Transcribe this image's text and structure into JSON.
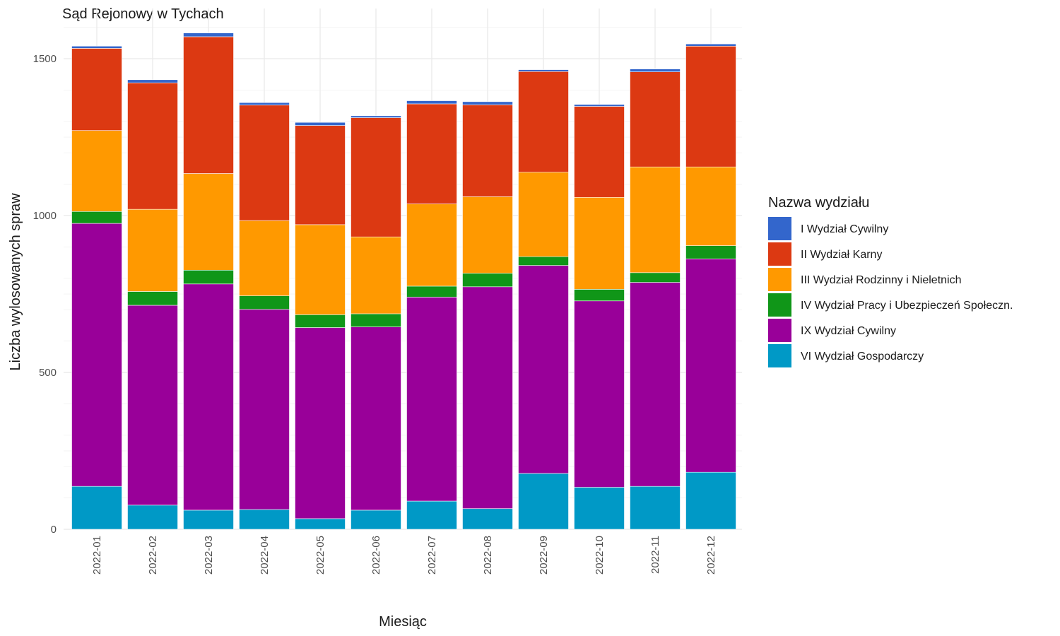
{
  "chart_data": {
    "type": "bar",
    "stacked": true,
    "title": "Sąd Rejonowy w Tychach",
    "xlabel": "Miesiąc",
    "ylabel": "Liczba wylosowanych spraw",
    "ylim": [
      0,
      1600
    ],
    "yticks": [
      0,
      500,
      1000,
      1500
    ],
    "grid": true,
    "legend_position": "right",
    "legend_title": "Nazwa wydziału",
    "categories": [
      "2022-01",
      "2022-02",
      "2022-03",
      "2022-04",
      "2022-05",
      "2022-06",
      "2022-07",
      "2022-08",
      "2022-09",
      "2022-10",
      "2022-11",
      "2022-12"
    ],
    "series": [
      {
        "name": "VI Wydział Gospodarczy",
        "color": "#0099C6",
        "values": [
          137,
          77,
          61,
          63,
          34,
          61,
          90,
          66,
          178,
          134,
          137,
          182
        ]
      },
      {
        "name": "IX Wydział Cywilny",
        "color": "#990099",
        "values": [
          838,
          637,
          721,
          638,
          609,
          584,
          650,
          707,
          663,
          594,
          650,
          680
        ]
      },
      {
        "name": "IV Wydział Pracy i Ubezpieczeń Społeczn.",
        "color": "#109618",
        "values": [
          38,
          44,
          44,
          43,
          41,
          42,
          35,
          43,
          28,
          37,
          31,
          42
        ]
      },
      {
        "name": "III Wydział Rodzinny i Nieletnich",
        "color": "#FF9900",
        "values": [
          258,
          262,
          308,
          240,
          287,
          245,
          262,
          244,
          269,
          293,
          337,
          251
        ]
      },
      {
        "name": "II Wydział Karny",
        "color": "#DC3912",
        "values": [
          262,
          403,
          436,
          368,
          316,
          380,
          319,
          293,
          321,
          290,
          303,
          385
        ]
      },
      {
        "name": "I Wydział Cywilny",
        "color": "#3366CC",
        "values": [
          7,
          10,
          12,
          8,
          10,
          6,
          10,
          10,
          6,
          6,
          9,
          7
        ]
      }
    ],
    "legend_order": [
      "I Wydział Cywilny",
      "II Wydział Karny",
      "III Wydział Rodzinny i Nieletnich",
      "IV Wydział Pracy i Ubezpieczeń Społeczn.",
      "IX Wydział Cywilny",
      "VI Wydział Gospodarczy"
    ]
  }
}
